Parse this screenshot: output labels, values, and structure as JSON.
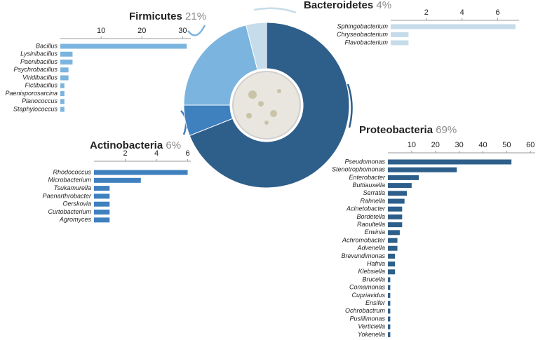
{
  "chart_data": [
    {
      "type": "pie",
      "categories": [
        "Proteobacteria",
        "Actinobacteria",
        "Firmicutes",
        "Bacteroidetes"
      ],
      "values": [
        69,
        6,
        21,
        4
      ],
      "value_labels": [
        "69%",
        "6%",
        "21%",
        "4%"
      ],
      "colors": [
        "#2e5f8b",
        "#3f80bf",
        "#7bb4de",
        "#c6dcea"
      ]
    },
    {
      "type": "bar",
      "orientation": "horizontal",
      "color": "#7bb4de",
      "categories": [
        "Bacillus",
        "Lysinibacillus",
        "Paenibacillus",
        "Psychrobacillus",
        "Viridibacillus",
        "Fictibacillus",
        "Paenisporosarcina",
        "Planococcus",
        "Staphylococcus"
      ],
      "values": [
        31,
        3,
        3,
        2,
        2,
        1,
        1,
        1,
        1
      ],
      "xlim": [
        0,
        32
      ],
      "xticks": [
        10,
        20,
        30
      ]
    },
    {
      "type": "bar",
      "orientation": "horizontal",
      "color": "#c6dcea",
      "categories": [
        "Sphingobacterium",
        "Chryseobacterium",
        "Flavobacterium"
      ],
      "values": [
        7,
        1,
        1
      ],
      "xlim": [
        0,
        7.2
      ],
      "xticks": [
        2,
        4,
        6
      ]
    },
    {
      "type": "bar",
      "orientation": "horizontal",
      "color": "#3f80bf",
      "categories": [
        "Rhodococcus",
        "Microbacterium",
        "Tsukamurella",
        "Paenarthrobacter",
        "Oerskovia",
        "Curtobacterium",
        "Agromyces"
      ],
      "values": [
        6,
        3,
        1,
        1,
        1,
        1,
        1
      ],
      "xlim": [
        0,
        6.2
      ],
      "xticks": [
        2,
        4,
        6
      ]
    },
    {
      "type": "bar",
      "orientation": "horizontal",
      "color": "#2e5f8b",
      "categories": [
        "Pseudomonas",
        "Stenotrophomonas",
        "Enterobacter",
        "Buttiauxella",
        "Serratia",
        "Rahnella",
        "Acinetobacter",
        "Bordetella",
        "Raoultella",
        "Erwinia",
        "Achromobacter",
        "Advenella",
        "Brevundimonas",
        "Hafnia",
        "Klebsiella",
        "Brucella",
        "Comamonas",
        "Cupriavidus",
        "Ensifer",
        "Ochrobactrum",
        "Pusillimonas",
        "Verticiella",
        "Yokenella"
      ],
      "values": [
        52,
        29,
        13,
        10,
        8,
        7,
        6,
        6,
        6,
        5,
        4,
        4,
        3,
        3,
        3,
        1,
        1,
        1,
        1,
        1,
        1,
        1,
        1
      ],
      "xlim": [
        0,
        62
      ],
      "xticks": [
        10,
        20,
        30,
        40,
        50,
        60
      ]
    }
  ]
}
